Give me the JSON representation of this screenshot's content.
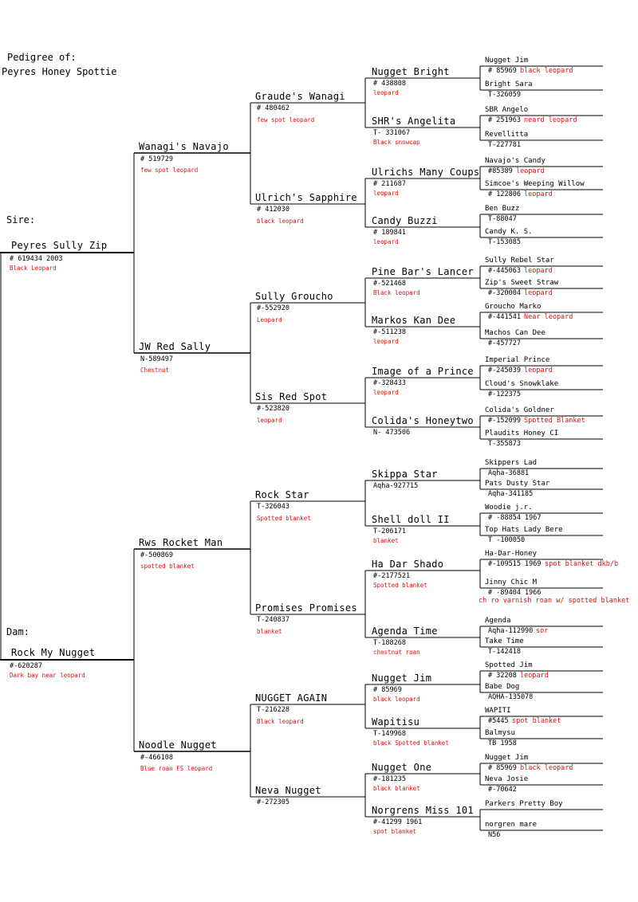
{
  "header": {
    "line1": "Pedigree of:",
    "line2": "Peyres Honey Spottie"
  },
  "sire_label": "Sire:",
  "dam_label": "Dam:",
  "g1": {
    "sire": {
      "name": "Peyres Sully Zip",
      "reg": "# 619434  2003",
      "color": "Black Leopard"
    },
    "dam": {
      "name": "Rock My Nugget",
      "reg": "#-620287",
      "color": "Dark bay near leopard"
    }
  },
  "g2": [
    {
      "name": "Wanagi's Navajo",
      "reg": "# 519729",
      "color": "few spot leopard"
    },
    {
      "name": "JW Red Sally",
      "reg": "N-589497",
      "color": "Chestnut"
    },
    {
      "name": "Rws Rocket Man",
      "reg": "#-500869",
      "color": "spotted blanket"
    },
    {
      "name": "Noodle Nugget",
      "reg": "#-466108",
      "color": "Blue roan FS leopard"
    }
  ],
  "g3": [
    {
      "name": "Graude's Wanagi",
      "reg": "# 480462",
      "color": "few spot leopard"
    },
    {
      "name": "Ulrich's Sapphire",
      "reg": "# 412030",
      "color": "black leopard"
    },
    {
      "name": "Sully Groucho",
      "reg": "#-552920",
      "color": "Leopard"
    },
    {
      "name": "Sis Red Spot",
      "reg": "#-523820",
      "color": "leopard"
    },
    {
      "name": "Rock Star",
      "reg": "T-326043",
      "color": "Spotted blanket"
    },
    {
      "name": "Promises Promises",
      "reg": "T-240837",
      "color": "blanket"
    },
    {
      "name": "NUGGET AGAIN",
      "reg": "T-216228",
      "color": "Black leopard"
    },
    {
      "name": "Neva Nugget",
      "reg": "#-272305",
      "color": ""
    }
  ],
  "g4": [
    {
      "name": "Nugget Bright",
      "reg": "# 438808",
      "color": "leopard"
    },
    {
      "name": "SHR's Angelita",
      "reg": "T- 331067",
      "color": "Black snowcap"
    },
    {
      "name": "Ulrichs Many Coups",
      "reg": "# 211687",
      "color": "leopard"
    },
    {
      "name": "Candy Buzzi",
      "reg": "# 189841",
      "color": "leopard"
    },
    {
      "name": "Pine Bar's Lancer",
      "reg": "#-521468",
      "color": "Black leopard"
    },
    {
      "name": "Markos Kan Dee",
      "reg": "#-511238",
      "color": "leopard"
    },
    {
      "name": "Image of a Prince",
      "reg": "#-328433",
      "color": "leopard"
    },
    {
      "name": "Colida's Honeytwo",
      "reg": "N- 473506",
      "color": ""
    },
    {
      "name": "Skippa Star",
      "reg": "Aqha-927715",
      "color": ""
    },
    {
      "name": "Shell doll II",
      "reg": "T-206171",
      "color": "blanket"
    },
    {
      "name": "Ha Dar Shado",
      "reg": "#-2177521",
      "color": "Spotted blanket"
    },
    {
      "name": "Agenda Time",
      "reg": "T-188268",
      "color": "chestnut roan"
    },
    {
      "name": "Nugget Jim",
      "reg": "# 85969",
      "color": "black leopard"
    },
    {
      "name": "Wapitisu",
      "reg": "T-149968",
      "color": "black Spotted blanket"
    },
    {
      "name": "Nugget One",
      "reg": "#-181235",
      "color": "black blanket"
    },
    {
      "name": "Norgrens Miss 101",
      "reg": "#-41299 1961",
      "color": "spot blanket"
    }
  ],
  "g5": [
    {
      "name": "Nugget Jim",
      "reg": "# 85969",
      "color": "black leopard"
    },
    {
      "name": "Bright Sara",
      "reg": "T-326059",
      "color": ""
    },
    {
      "name": "SBR Angelo",
      "reg": "# 251963",
      "color": "neard leopard"
    },
    {
      "name": "Revellitta",
      "reg": "T-227781",
      "color": ""
    },
    {
      "name": "Navajo's Candy",
      "reg": "#85389",
      "color": "leopard"
    },
    {
      "name": "Simcoe's Weeping Willow",
      "reg": "# 122806",
      "color": "leopard"
    },
    {
      "name": "Ben Buzz",
      "reg": "T-88047",
      "color": ""
    },
    {
      "name": "Candy K. S.",
      "reg": "T-153085",
      "color": ""
    },
    {
      "name": "Sully Rebel Star",
      "reg": "#-445063",
      "color": "leopard"
    },
    {
      "name": "Zip's Sweet Straw",
      "reg": "#-320004",
      "color": "leopard"
    },
    {
      "name": "Groucho Marko",
      "reg": "#-441541",
      "color": "Near leopard"
    },
    {
      "name": "Machos Can Dee",
      "reg": "#-457727",
      "color": ""
    },
    {
      "name": "Imperial Prince",
      "reg": "#-245039",
      "color": "leopard"
    },
    {
      "name": "Cloud's Snowklake",
      "reg": "#-122375",
      "color": ""
    },
    {
      "name": "Colida's Goldner",
      "reg": "#-152099",
      "color": "Spotted Blanket"
    },
    {
      "name": "Plaudits Honey CI",
      "reg": "T-355873",
      "color": ""
    },
    {
      "name": "Skippers Lad",
      "reg": "Aqha-36881",
      "color": ""
    },
    {
      "name": "Pats Dusty Star",
      "reg": "Aqha-341185",
      "color": ""
    },
    {
      "name": "Woodie j.r.",
      "reg": "#  -88854 1967",
      "color": ""
    },
    {
      "name": "Top Hats Lady Bere",
      "reg": "T  -100050",
      "color": ""
    },
    {
      "name": "Ha-Dar-Honey",
      "reg": "#-109515 1969",
      "color": "spot blanket dkb/b"
    },
    {
      "name": "Jinny Chic M",
      "reg": "# -89404 1966",
      "color": "ch ro varnish roan w/ spotted blanket"
    },
    {
      "name": "Agenda",
      "reg": "Aqha-112990",
      "color": "sor"
    },
    {
      "name": "Take Time",
      "reg": "T-142418",
      "color": ""
    },
    {
      "name": "Spotted Jim",
      "reg": "# 32208",
      "color": "leopard"
    },
    {
      "name": "Babe Dog",
      "reg": "AQHA-135078",
      "color": ""
    },
    {
      "name": "WAPITI",
      "reg": "#5445",
      "color": "spot blanket"
    },
    {
      "name": "Balmysu",
      "reg": "TB 1958",
      "color": ""
    },
    {
      "name": "Nugget Jim",
      "reg": "# 85969",
      "color": "black leopard"
    },
    {
      "name": "Neva Josie",
      "reg": "#-70642",
      "color": ""
    },
    {
      "name": "Parkers Pretty Boy",
      "reg": "",
      "color": ""
    },
    {
      "name": "norgren mare",
      "reg": "N56",
      "color": ""
    }
  ],
  "colors": {
    "line": "#000000",
    "highlight": "#e01010"
  }
}
